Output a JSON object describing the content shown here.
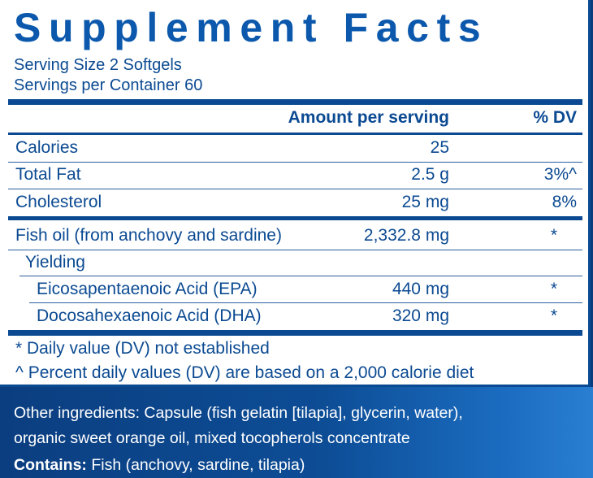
{
  "title": "Supplement Facts",
  "serving_size": "Serving Size 2 Softgels",
  "servings_per_container": "Servings per Container 60",
  "header": {
    "amount": "Amount per serving",
    "dv": "% DV"
  },
  "rows": [
    {
      "label": "Calories",
      "amount": "25",
      "dv": ""
    },
    {
      "label": "Total Fat",
      "amount": "2.5 g",
      "dv": "3%^"
    },
    {
      "label": "Cholesterol",
      "amount": "25 mg",
      "dv": "8%"
    },
    {
      "label": "Fish oil (from anchovy and sardine)",
      "amount": "2,332.8 mg",
      "dv": "*"
    },
    {
      "label": "Yielding",
      "amount": "",
      "dv": ""
    },
    {
      "label": "Eicosapentaenoic Acid (EPA)",
      "amount": "440 mg",
      "dv": "*"
    },
    {
      "label": "Docosahexaenoic Acid (DHA)",
      "amount": "320 mg",
      "dv": "*"
    }
  ],
  "footnotes": [
    "* Daily value (DV) not established",
    "^ Percent daily values (DV) are based on a 2,000 calorie diet"
  ],
  "other_ingredients": [
    "Other ingredients: Capsule (fish gelatin [tilapia], glycerin, water),",
    "organic sweet orange oil, mixed tocopherols concentrate"
  ],
  "contains_label": "Contains:",
  "contains_text": " Fish (anchovy, sardine, tilapia)"
}
